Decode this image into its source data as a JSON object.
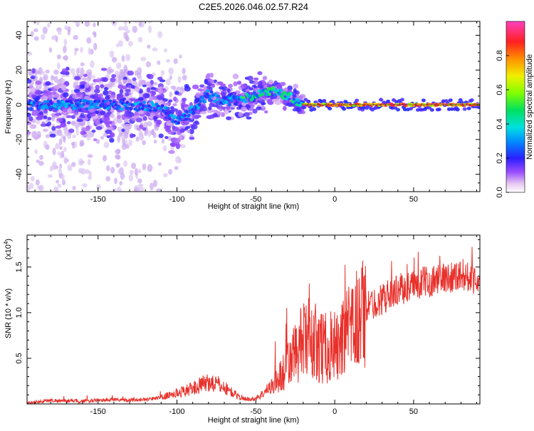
{
  "title": "C2E5.2026.046.02.57.R24",
  "colors": {
    "snr_line": "#e8302a",
    "axis": "#000000",
    "background": "#ffffff"
  },
  "chart_data": [
    {
      "type": "heatmap",
      "xlabel": "Height of straight line (km)",
      "ylabel": "Frequency (Hz)",
      "xlim": [
        -195,
        92
      ],
      "ylim": [
        -50,
        48
      ],
      "xticks": [
        -150,
        -100,
        -50,
        0,
        50
      ],
      "xtick_labels": [
        "-150",
        "-100",
        "-50",
        "0",
        "50"
      ],
      "yticks": [
        -40,
        -20,
        0,
        20,
        40
      ],
      "ytick_labels": [
        "-40",
        "-20",
        "0",
        "20",
        "40"
      ],
      "colorbar": {
        "label": "Normalized spectral amplitude",
        "range": [
          0,
          1
        ],
        "ticks": [
          0,
          0.2,
          0.4,
          0.6,
          0.8
        ],
        "tick_labels": [
          "0.0",
          "0.2",
          "0.4",
          "0.6",
          "0.8"
        ]
      },
      "ridge": {
        "x": [
          -195,
          -150,
          -110,
          -100,
          -90,
          -80,
          -70,
          -60,
          -50,
          -40,
          -30,
          -25,
          -20,
          -10,
          0,
          10,
          30,
          50,
          70,
          92
        ],
        "freq": [
          0,
          0,
          -1,
          -10,
          -3,
          6,
          2,
          3,
          5,
          8,
          5,
          3,
          0,
          0,
          0,
          0,
          0,
          0,
          0,
          0
        ]
      }
    },
    {
      "type": "line",
      "xlabel": "Height of straight line (km)",
      "ylabel": "SNR (10 * v/v)",
      "multiplier_label": "(x10",
      "multiplier_exp": "4",
      "multiplier_close": ")",
      "xlim": [
        -195,
        92
      ],
      "ylim": [
        0,
        1.85
      ],
      "xticks": [
        -150,
        -100,
        -50,
        0,
        50
      ],
      "xtick_labels": [
        "-150",
        "-100",
        "-50",
        "0",
        "50"
      ],
      "yticks": [
        0.5,
        1.0,
        1.5
      ],
      "ytick_labels": [
        "0.5",
        "1.0",
        "1.5"
      ],
      "series": [
        {
          "name": "SNR",
          "x": [
            -195,
            -180,
            -170,
            -160,
            -150,
            -140,
            -130,
            -120,
            -110,
            -100,
            -90,
            -80,
            -75,
            -70,
            -60,
            -55,
            -50,
            -45,
            -40,
            -35,
            -30,
            -25,
            -20,
            -15,
            -10,
            -5,
            0,
            5,
            10,
            15,
            20,
            30,
            40,
            50,
            60,
            70,
            80,
            92
          ],
          "values": [
            0.01,
            0.04,
            0.03,
            0.03,
            0.04,
            0.05,
            0.04,
            0.05,
            0.07,
            0.12,
            0.17,
            0.24,
            0.22,
            0.18,
            0.07,
            0.05,
            0.06,
            0.12,
            0.2,
            0.28,
            0.42,
            0.55,
            0.68,
            0.72,
            0.65,
            0.6,
            0.62,
            0.7,
            0.8,
            0.95,
            1.05,
            1.15,
            1.25,
            1.3,
            1.35,
            1.38,
            1.42,
            1.36
          ]
        }
      ]
    }
  ]
}
